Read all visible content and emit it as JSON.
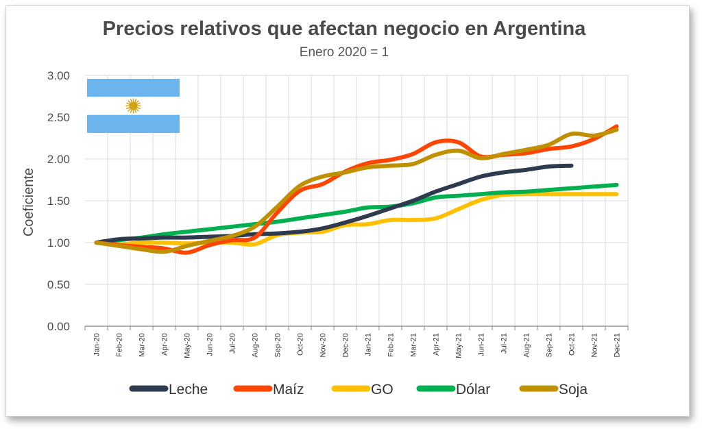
{
  "chart_data": {
    "type": "line",
    "title": "Precios relativos que afectan negocio en Argentina",
    "subtitle": "Enero 2020 = 1",
    "ylabel": "Coeficiente",
    "xlabel": "",
    "ylim": [
      0,
      3
    ],
    "yticks": [
      "0.00",
      "0.50",
      "1.00",
      "1.50",
      "2.00",
      "2.50",
      "3.00"
    ],
    "grid": true,
    "legend_position": "bottom",
    "categories": [
      "Jan-20",
      "Feb-20",
      "Mar-20",
      "Apr-20",
      "May-20",
      "Jun-20",
      "Jul-20",
      "Aug-20",
      "Sep-20",
      "Oct-20",
      "Nov-20",
      "Dec-20",
      "Jan-21",
      "Feb-21",
      "Mar-21",
      "Apr-21",
      "May-21",
      "Jun-21",
      "Jul-21",
      "Aug-21",
      "Sep-21",
      "Oct-21",
      "Nov-21",
      "Dec-21"
    ],
    "series": [
      {
        "name": "Leche",
        "color": "#2e3a4d",
        "values": [
          1.0,
          1.04,
          1.05,
          1.06,
          1.06,
          1.07,
          1.08,
          1.1,
          1.11,
          1.13,
          1.17,
          1.24,
          1.32,
          1.41,
          1.5,
          1.61,
          1.7,
          1.79,
          1.84,
          1.87,
          1.91,
          1.92,
          null,
          null
        ]
      },
      {
        "name": "Maíz",
        "color": "#ff4500",
        "values": [
          1.0,
          0.97,
          0.95,
          0.93,
          0.88,
          0.97,
          1.03,
          1.06,
          1.36,
          1.62,
          1.7,
          1.85,
          1.95,
          1.99,
          2.06,
          2.2,
          2.2,
          2.03,
          2.05,
          2.07,
          2.12,
          2.15,
          2.24,
          2.39
        ]
      },
      {
        "name": "GO",
        "color": "#ffc000",
        "values": [
          1.0,
          0.98,
          1.0,
          1.0,
          0.99,
          1.0,
          1.0,
          0.98,
          1.09,
          1.12,
          1.13,
          1.21,
          1.22,
          1.27,
          1.27,
          1.29,
          1.4,
          1.51,
          1.57,
          1.58,
          1.58,
          1.58,
          1.58,
          1.58
        ]
      },
      {
        "name": "Dólar",
        "color": "#00b050",
        "values": [
          1.0,
          1.03,
          1.06,
          1.1,
          1.13,
          1.16,
          1.19,
          1.22,
          1.25,
          1.29,
          1.33,
          1.37,
          1.42,
          1.43,
          1.47,
          1.54,
          1.56,
          1.58,
          1.6,
          1.61,
          1.63,
          1.65,
          1.67,
          1.69
        ]
      },
      {
        "name": "Soja",
        "color": "#bf9000",
        "values": [
          1.0,
          0.96,
          0.92,
          0.89,
          0.96,
          1.02,
          1.08,
          1.19,
          1.43,
          1.68,
          1.79,
          1.84,
          1.9,
          1.92,
          1.94,
          2.05,
          2.1,
          2.01,
          2.06,
          2.11,
          2.17,
          2.3,
          2.28,
          2.35
        ]
      }
    ]
  },
  "decoration": {
    "flag_icon": "argentina-flag-icon",
    "flag_colors": {
      "stripe": "#6cb4ee",
      "center": "#ffffff",
      "sun": "#d4a017"
    }
  }
}
